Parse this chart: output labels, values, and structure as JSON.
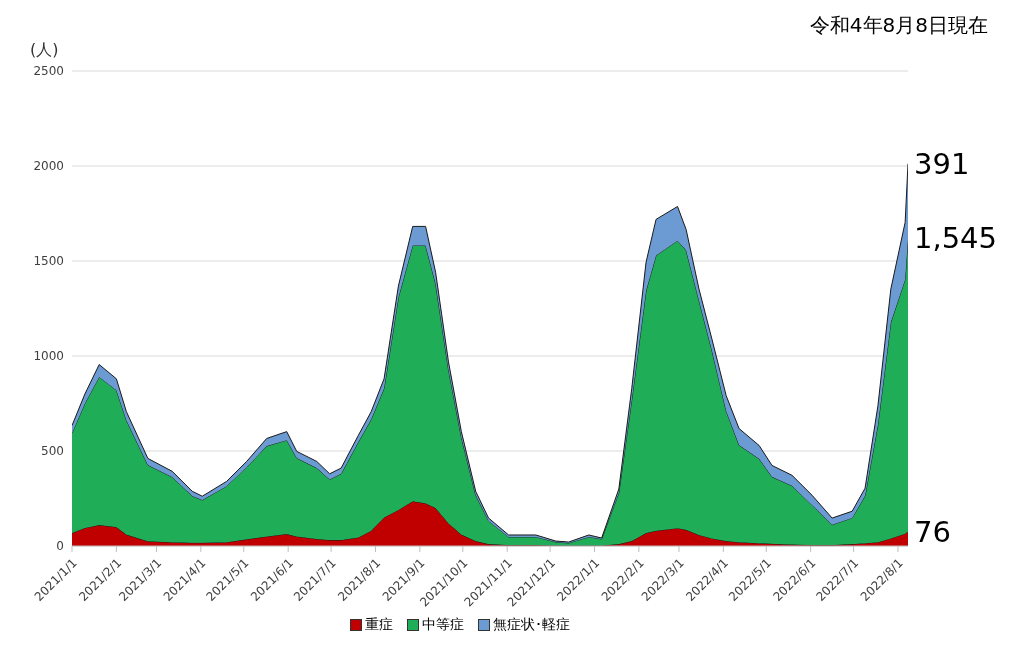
{
  "chart_data": {
    "type": "area",
    "stacked": true,
    "ylabel": "(人)",
    "annotations": [
      "令和4年8月8日現在"
    ],
    "x": [
      "2021-01-01",
      "2021-01-10",
      "2021-01-20",
      "2021-02-01",
      "2021-02-08",
      "2021-02-23",
      "2021-03-12",
      "2021-03-26",
      "2021-04-02",
      "2021-04-19",
      "2021-05-03",
      "2021-05-17",
      "2021-05-31",
      "2021-06-07",
      "2021-06-21",
      "2021-06-30",
      "2021-07-08",
      "2021-07-20",
      "2021-07-29",
      "2021-08-07",
      "2021-08-17",
      "2021-08-27",
      "2021-09-05",
      "2021-09-12",
      "2021-09-21",
      "2021-09-30",
      "2021-10-10",
      "2021-10-19",
      "2021-11-02",
      "2021-11-21",
      "2021-12-05",
      "2021-12-14",
      "2021-12-28",
      "2022-01-06",
      "2022-01-18",
      "2022-01-27",
      "2022-02-06",
      "2022-02-13",
      "2022-02-28",
      "2022-03-06",
      "2022-03-15",
      "2022-03-24",
      "2022-04-03",
      "2022-04-12",
      "2022-04-26",
      "2022-05-05",
      "2022-05-19",
      "2022-06-02",
      "2022-06-16",
      "2022-06-30",
      "2022-07-09",
      "2022-07-18",
      "2022-07-27",
      "2022-08-06",
      "2022-08-08"
    ],
    "series": [
      {
        "name": "重症",
        "color": "#c00000",
        "values": [
          68,
          95,
          110,
          100,
          60,
          25,
          20,
          17,
          17,
          20,
          35,
          50,
          63,
          50,
          37,
          31,
          31,
          45,
          80,
          150,
          190,
          235,
          225,
          200,
          120,
          60,
          26,
          10,
          5,
          5,
          3,
          3,
          3,
          3,
          10,
          26,
          68,
          80,
          94,
          85,
          58,
          40,
          26,
          20,
          15,
          12,
          8,
          5,
          5,
          10,
          15,
          20,
          40,
          65,
          76
        ],
        "value_labels": [
          null,
          null,
          null,
          null,
          null,
          null,
          null,
          null,
          null,
          null,
          null,
          null,
          null,
          null,
          null,
          null,
          null,
          null,
          null,
          null,
          null,
          null,
          null,
          null,
          null,
          null,
          null,
          null,
          null,
          null,
          null,
          null,
          null,
          null,
          null,
          null,
          null,
          null,
          null,
          null,
          null,
          null,
          null,
          null,
          null,
          null,
          null,
          null,
          null,
          null,
          null,
          null,
          null,
          null,
          "76"
        ]
      },
      {
        "name": "中等症",
        "color": "#1fae57",
        "values": [
          526,
          655,
          780,
          720,
          602,
          401,
          343,
          246,
          225,
          295,
          380,
          476,
          494,
          413,
          373,
          319,
          349,
          502,
          587,
          680,
          1118,
          1347,
          1357,
          1181,
          809,
          512,
          242,
          122,
          43,
          43,
          18,
          13,
          45,
          34,
          270,
          742,
          1275,
          1449,
          1513,
          1471,
          1234,
          990,
          685,
          511,
          444,
          352,
          309,
          210,
          107,
          138,
          249,
          619,
          1137,
          1338,
          1545
        ],
        "value_labels": [
          null,
          null,
          null,
          null,
          null,
          null,
          null,
          null,
          null,
          null,
          null,
          null,
          null,
          null,
          null,
          null,
          null,
          null,
          null,
          null,
          null,
          null,
          null,
          null,
          null,
          null,
          null,
          null,
          null,
          null,
          null,
          null,
          null,
          null,
          null,
          null,
          null,
          null,
          null,
          null,
          null,
          null,
          null,
          null,
          null,
          null,
          null,
          null,
          null,
          null,
          null,
          null,
          null,
          null,
          "1,545"
        ]
      },
      {
        "name": "無症状･軽症",
        "color": "#6b9bd2",
        "values": [
          40,
          50,
          65,
          60,
          45,
          35,
          30,
          25,
          20,
          25,
          30,
          40,
          45,
          35,
          35,
          30,
          30,
          35,
          40,
          50,
          60,
          100,
          100,
          60,
          40,
          30,
          20,
          15,
          10,
          10,
          5,
          5,
          10,
          5,
          20,
          60,
          150,
          190,
          180,
          110,
          60,
          60,
          80,
          87,
          70,
          60,
          55,
          52,
          35,
          35,
          40,
          100,
          175,
          300,
          391
        ],
        "value_labels": [
          null,
          null,
          null,
          null,
          null,
          null,
          null,
          null,
          null,
          null,
          null,
          null,
          null,
          null,
          null,
          null,
          null,
          null,
          null,
          null,
          null,
          null,
          null,
          null,
          null,
          null,
          null,
          null,
          null,
          null,
          null,
          null,
          null,
          null,
          null,
          null,
          null,
          null,
          null,
          null,
          null,
          null,
          null,
          null,
          null,
          null,
          null,
          null,
          null,
          null,
          null,
          null,
          null,
          null,
          "391"
        ]
      }
    ],
    "xlim": [
      "2021-01-01",
      "2022-08-08"
    ],
    "xticks": [
      {
        "value": "2021-01-01",
        "label": "2021/1/1"
      },
      {
        "value": "2021-02-01",
        "label": "2021/2/1"
      },
      {
        "value": "2021-03-01",
        "label": "2021/3/1"
      },
      {
        "value": "2021-04-01",
        "label": "2021/4/1"
      },
      {
        "value": "2021-05-01",
        "label": "2021/5/1"
      },
      {
        "value": "2021-06-01",
        "label": "2021/6/1"
      },
      {
        "value": "2021-07-01",
        "label": "2021/7/1"
      },
      {
        "value": "2021-08-01",
        "label": "2021/8/1"
      },
      {
        "value": "2021-09-01",
        "label": "2021/9/1"
      },
      {
        "value": "2021-10-01",
        "label": "2021/10/1"
      },
      {
        "value": "2021-11-01",
        "label": "2021/11/1"
      },
      {
        "value": "2021-12-01",
        "label": "2021/12/1"
      },
      {
        "value": "2022-01-01",
        "label": "2022/1/1"
      },
      {
        "value": "2022-02-01",
        "label": "2022/2/1"
      },
      {
        "value": "2022-03-01",
        "label": "2022/3/1"
      },
      {
        "value": "2022-04-01",
        "label": "2022/4/1"
      },
      {
        "value": "2022-05-01",
        "label": "2022/5/1"
      },
      {
        "value": "2022-06-01",
        "label": "2022/6/1"
      },
      {
        "value": "2022-07-01",
        "label": "2022/7/1"
      },
      {
        "value": "2022-08-01",
        "label": "2022/8/1"
      }
    ],
    "ylim": [
      0,
      2500
    ],
    "yticks": [
      0,
      500,
      1000,
      1500,
      2000,
      2500
    ],
    "grid": "y",
    "legend": "bottom"
  }
}
